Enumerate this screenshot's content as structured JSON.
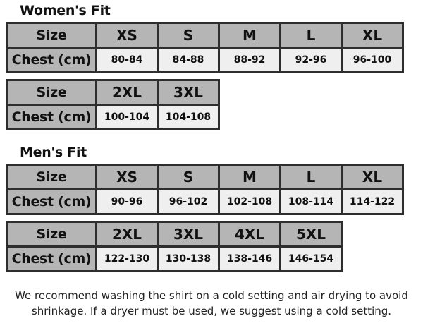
{
  "womens": {
    "title": "Women's Fit",
    "tables": [
      {
        "row_labels": [
          "Size",
          "Chest (cm)"
        ],
        "sizes": [
          "XS",
          "S",
          "M",
          "L",
          "XL"
        ],
        "chest": [
          "80-84",
          "84-88",
          "88-92",
          "92-96",
          "96-100"
        ]
      },
      {
        "row_labels": [
          "Size",
          "Chest (cm)"
        ],
        "sizes": [
          "2XL",
          "3XL"
        ],
        "chest": [
          "100-104",
          "104-108"
        ]
      }
    ]
  },
  "mens": {
    "title": "Men's Fit",
    "tables": [
      {
        "row_labels": [
          "Size",
          "Chest (cm)"
        ],
        "sizes": [
          "XS",
          "S",
          "M",
          "L",
          "XL"
        ],
        "chest": [
          "90-96",
          "96-102",
          "102-108",
          "108-114",
          "114-122"
        ]
      },
      {
        "row_labels": [
          "Size",
          "Chest (cm)"
        ],
        "sizes": [
          "2XL",
          "3XL",
          "4XL",
          "5XL"
        ],
        "chest": [
          "122-130",
          "130-138",
          "138-146",
          "146-154"
        ]
      }
    ]
  },
  "note": {
    "line1": "We recommend washing the shirt on a cold setting and air drying to avoid",
    "line2": "shrinkage. If a dryer must be used, we suggest using a cold setting."
  },
  "colors": {
    "header_bg": "#b5b5b5",
    "value_bg": "#efefef",
    "border": "#2e2e2e"
  }
}
